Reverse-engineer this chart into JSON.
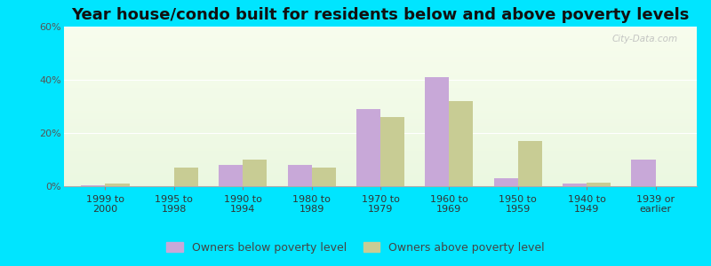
{
  "title": "Year house/condo built for residents below and above poverty levels",
  "categories": [
    "1999 to\n2000",
    "1995 to\n1998",
    "1990 to\n1994",
    "1980 to\n1989",
    "1970 to\n1979",
    "1960 to\n1969",
    "1950 to\n1959",
    "1940 to\n1949",
    "1939 or\nearlier"
  ],
  "below_poverty": [
    0.5,
    0,
    8,
    8,
    29,
    41,
    3,
    1,
    10
  ],
  "above_poverty": [
    1,
    7,
    10,
    7,
    26,
    32,
    17,
    1.5,
    0
  ],
  "below_color": "#c8a8d8",
  "above_color": "#c8cc94",
  "ylim": [
    0,
    60
  ],
  "yticks": [
    0,
    20,
    40,
    60
  ],
  "ytick_labels": [
    "0%",
    "20%",
    "40%",
    "60%"
  ],
  "bar_width": 0.35,
  "outer_background": "#00e5ff",
  "legend_below_label": "Owners below poverty level",
  "legend_above_label": "Owners above poverty level",
  "title_fontsize": 13,
  "tick_fontsize": 8,
  "legend_fontsize": 9,
  "watermark": "City-Data.com"
}
